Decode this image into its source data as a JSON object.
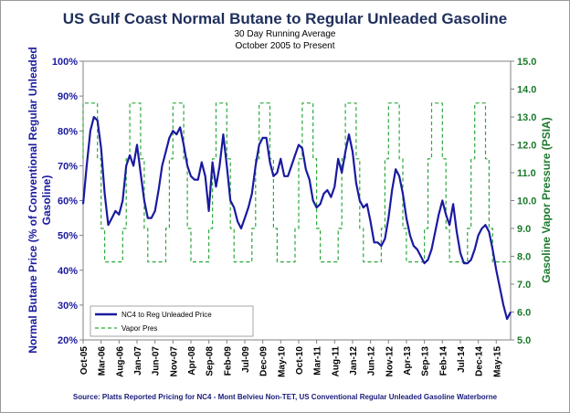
{
  "chart_data": {
    "type": "line",
    "title": "US Gulf Coast Normal Butane to Regular Unleaded Gasoline",
    "subtitle_lines": [
      "30 Day Running Average",
      "October 2005  to Present"
    ],
    "ylabel": "Normal Butane Price (% of Conventional Regular Unleaded Gasoline)",
    "ylabel_lines": [
      "Normal Butane Price (% of Conventional Regular Unleaded",
      "Gasoline)"
    ],
    "y2label": "Gasoline Vapor Pressure (PSIA)",
    "source": "Source: Platts Reported Pricing for NC4 - Mont Belvieu Non-TET, US Conventional Regular Unleaded Gasoline Waterborne",
    "ylim": [
      0.2,
      1.0
    ],
    "y_ticks": [
      "20%",
      "30%",
      "40%",
      "50%",
      "60%",
      "70%",
      "80%",
      "90%",
      "100%"
    ],
    "y2lim": [
      5.0,
      15.0
    ],
    "y2_ticks": [
      "5.0",
      "6.0",
      "7.0",
      "8.0",
      "9.0",
      "10.0",
      "11.0",
      "12.0",
      "13.0",
      "14.0",
      "15.0"
    ],
    "xlim": [
      "2005-10",
      "2015-09"
    ],
    "x_ticks": [
      "Oct-05",
      "Mar-06",
      "Aug-06",
      "Jan-07",
      "Jun-07",
      "Nov-07",
      "Apr-08",
      "Sep-08",
      "Feb-09",
      "Jul-09",
      "Dec-09",
      "May-10",
      "Oct-10",
      "Mar-11",
      "Aug-11",
      "Jan-12",
      "Jun-12",
      "Nov-12",
      "Apr-13",
      "Sep-13",
      "Feb-14",
      "Jul-14",
      "Dec-14",
      "May-15"
    ],
    "grid": false,
    "legend_position": "bottom-left",
    "series": [
      {
        "name": "NC4 to Reg Unleaded Price",
        "axis": "left",
        "color": "#1a1aa0",
        "style": "solid",
        "points": [
          [
            "2005-10",
            0.59
          ],
          [
            "2005-11",
            0.7
          ],
          [
            "2005-12",
            0.8
          ],
          [
            "2006-01",
            0.84
          ],
          [
            "2006-02",
            0.83
          ],
          [
            "2006-03",
            0.75
          ],
          [
            "2006-04",
            0.62
          ],
          [
            "2006-05",
            0.53
          ],
          [
            "2006-06",
            0.55
          ],
          [
            "2006-07",
            0.57
          ],
          [
            "2006-08",
            0.56
          ],
          [
            "2006-09",
            0.6
          ],
          [
            "2006-10",
            0.7
          ],
          [
            "2006-11",
            0.73
          ],
          [
            "2006-12",
            0.7
          ],
          [
            "2007-01",
            0.76
          ],
          [
            "2007-02",
            0.68
          ],
          [
            "2007-03",
            0.6
          ],
          [
            "2007-04",
            0.55
          ],
          [
            "2007-05",
            0.55
          ],
          [
            "2007-06",
            0.57
          ],
          [
            "2007-07",
            0.63
          ],
          [
            "2007-08",
            0.7
          ],
          [
            "2007-09",
            0.74
          ],
          [
            "2007-10",
            0.78
          ],
          [
            "2007-11",
            0.8
          ],
          [
            "2007-12",
            0.79
          ],
          [
            "2008-01",
            0.81
          ],
          [
            "2008-02",
            0.76
          ],
          [
            "2008-03",
            0.7
          ],
          [
            "2008-04",
            0.67
          ],
          [
            "2008-05",
            0.66
          ],
          [
            "2008-06",
            0.66
          ],
          [
            "2008-07",
            0.71
          ],
          [
            "2008-08",
            0.67
          ],
          [
            "2008-09",
            0.57
          ],
          [
            "2008-10",
            0.71
          ],
          [
            "2008-11",
            0.64
          ],
          [
            "2008-12",
            0.7
          ],
          [
            "2009-01",
            0.79
          ],
          [
            "2009-02",
            0.7
          ],
          [
            "2009-03",
            0.6
          ],
          [
            "2009-04",
            0.58
          ],
          [
            "2009-05",
            0.54
          ],
          [
            "2009-06",
            0.52
          ],
          [
            "2009-07",
            0.55
          ],
          [
            "2009-08",
            0.58
          ],
          [
            "2009-09",
            0.62
          ],
          [
            "2009-10",
            0.7
          ],
          [
            "2009-11",
            0.76
          ],
          [
            "2009-12",
            0.78
          ],
          [
            "2010-01",
            0.78
          ],
          [
            "2010-02",
            0.71
          ],
          [
            "2010-03",
            0.67
          ],
          [
            "2010-04",
            0.68
          ],
          [
            "2010-05",
            0.72
          ],
          [
            "2010-06",
            0.67
          ],
          [
            "2010-07",
            0.67
          ],
          [
            "2010-08",
            0.7
          ],
          [
            "2010-09",
            0.73
          ],
          [
            "2010-10",
            0.76
          ],
          [
            "2010-11",
            0.75
          ],
          [
            "2010-12",
            0.69
          ],
          [
            "2011-01",
            0.66
          ],
          [
            "2011-02",
            0.6
          ],
          [
            "2011-03",
            0.58
          ],
          [
            "2011-04",
            0.59
          ],
          [
            "2011-05",
            0.62
          ],
          [
            "2011-06",
            0.63
          ],
          [
            "2011-07",
            0.61
          ],
          [
            "2011-08",
            0.64
          ],
          [
            "2011-09",
            0.72
          ],
          [
            "2011-10",
            0.68
          ],
          [
            "2011-11",
            0.74
          ],
          [
            "2011-12",
            0.79
          ],
          [
            "2012-01",
            0.74
          ],
          [
            "2012-02",
            0.65
          ],
          [
            "2012-03",
            0.6
          ],
          [
            "2012-04",
            0.58
          ],
          [
            "2012-05",
            0.59
          ],
          [
            "2012-06",
            0.54
          ],
          [
            "2012-07",
            0.48
          ],
          [
            "2012-08",
            0.48
          ],
          [
            "2012-09",
            0.47
          ],
          [
            "2012-10",
            0.49
          ],
          [
            "2012-11",
            0.55
          ],
          [
            "2012-12",
            0.63
          ],
          [
            "2013-01",
            0.69
          ],
          [
            "2013-02",
            0.67
          ],
          [
            "2013-03",
            0.62
          ],
          [
            "2013-04",
            0.55
          ],
          [
            "2013-05",
            0.5
          ],
          [
            "2013-06",
            0.47
          ],
          [
            "2013-07",
            0.46
          ],
          [
            "2013-08",
            0.44
          ],
          [
            "2013-09",
            0.42
          ],
          [
            "2013-10",
            0.43
          ],
          [
            "2013-11",
            0.46
          ],
          [
            "2013-12",
            0.51
          ],
          [
            "2014-01",
            0.56
          ],
          [
            "2014-02",
            0.6
          ],
          [
            "2014-03",
            0.56
          ],
          [
            "2014-04",
            0.53
          ],
          [
            "2014-05",
            0.59
          ],
          [
            "2014-06",
            0.51
          ],
          [
            "2014-07",
            0.45
          ],
          [
            "2014-08",
            0.42
          ],
          [
            "2014-09",
            0.42
          ],
          [
            "2014-10",
            0.43
          ],
          [
            "2014-11",
            0.46
          ],
          [
            "2014-12",
            0.5
          ],
          [
            "2015-01",
            0.52
          ],
          [
            "2015-02",
            0.53
          ],
          [
            "2015-03",
            0.51
          ],
          [
            "2015-04",
            0.46
          ],
          [
            "2015-05",
            0.4
          ],
          [
            "2015-06",
            0.35
          ],
          [
            "2015-07",
            0.3
          ],
          [
            "2015-08",
            0.26
          ],
          [
            "2015-09",
            0.28
          ]
        ]
      },
      {
        "name": "Vapor Pres",
        "axis": "right",
        "color": "#2aa83a",
        "style": "dashed",
        "points": [
          [
            "2005-10",
            11.5
          ],
          [
            "2005-10",
            13.5
          ],
          [
            "2006-02",
            13.5
          ],
          [
            "2006-02",
            11.5
          ],
          [
            "2006-03",
            11.5
          ],
          [
            "2006-03",
            9.0
          ],
          [
            "2006-04",
            9.0
          ],
          [
            "2006-04",
            7.8
          ],
          [
            "2006-09",
            7.8
          ],
          [
            "2006-09",
            9.0
          ],
          [
            "2006-10",
            9.0
          ],
          [
            "2006-10",
            11.5
          ],
          [
            "2006-11",
            11.5
          ],
          [
            "2006-11",
            13.5
          ],
          [
            "2007-02",
            13.5
          ],
          [
            "2007-02",
            11.5
          ],
          [
            "2007-03",
            11.5
          ],
          [
            "2007-03",
            9.0
          ],
          [
            "2007-04",
            9.0
          ],
          [
            "2007-04",
            7.8
          ],
          [
            "2007-09",
            7.8
          ],
          [
            "2007-09",
            9.0
          ],
          [
            "2007-10",
            9.0
          ],
          [
            "2007-10",
            11.5
          ],
          [
            "2007-11",
            11.5
          ],
          [
            "2007-11",
            13.5
          ],
          [
            "2008-02",
            13.5
          ],
          [
            "2008-02",
            11.5
          ],
          [
            "2008-03",
            11.5
          ],
          [
            "2008-03",
            9.0
          ],
          [
            "2008-04",
            9.0
          ],
          [
            "2008-04",
            7.8
          ],
          [
            "2008-09",
            7.8
          ],
          [
            "2008-09",
            9.0
          ],
          [
            "2008-10",
            9.0
          ],
          [
            "2008-10",
            11.5
          ],
          [
            "2008-11",
            11.5
          ],
          [
            "2008-11",
            13.5
          ],
          [
            "2009-02",
            13.5
          ],
          [
            "2009-02",
            11.5
          ],
          [
            "2009-03",
            11.5
          ],
          [
            "2009-03",
            9.0
          ],
          [
            "2009-04",
            9.0
          ],
          [
            "2009-04",
            7.8
          ],
          [
            "2009-09",
            7.8
          ],
          [
            "2009-09",
            9.0
          ],
          [
            "2009-10",
            9.0
          ],
          [
            "2009-10",
            11.5
          ],
          [
            "2009-11",
            11.5
          ],
          [
            "2009-11",
            13.5
          ],
          [
            "2010-02",
            13.5
          ],
          [
            "2010-02",
            11.5
          ],
          [
            "2010-03",
            11.5
          ],
          [
            "2010-03",
            9.0
          ],
          [
            "2010-04",
            9.0
          ],
          [
            "2010-04",
            7.8
          ],
          [
            "2010-09",
            7.8
          ],
          [
            "2010-09",
            9.0
          ],
          [
            "2010-10",
            9.0
          ],
          [
            "2010-10",
            11.5
          ],
          [
            "2010-11",
            11.5
          ],
          [
            "2010-11",
            13.5
          ],
          [
            "2011-02",
            13.5
          ],
          [
            "2011-02",
            11.5
          ],
          [
            "2011-03",
            11.5
          ],
          [
            "2011-03",
            9.0
          ],
          [
            "2011-04",
            9.0
          ],
          [
            "2011-04",
            7.8
          ],
          [
            "2011-09",
            7.8
          ],
          [
            "2011-09",
            9.0
          ],
          [
            "2011-10",
            9.0
          ],
          [
            "2011-10",
            11.5
          ],
          [
            "2011-11",
            11.5
          ],
          [
            "2011-11",
            13.5
          ],
          [
            "2012-02",
            13.5
          ],
          [
            "2012-02",
            11.5
          ],
          [
            "2012-03",
            11.5
          ],
          [
            "2012-03",
            9.0
          ],
          [
            "2012-04",
            9.0
          ],
          [
            "2012-04",
            7.8
          ],
          [
            "2012-09",
            7.8
          ],
          [
            "2012-09",
            9.0
          ],
          [
            "2012-10",
            9.0
          ],
          [
            "2012-10",
            11.5
          ],
          [
            "2012-11",
            11.5
          ],
          [
            "2012-11",
            13.5
          ],
          [
            "2013-02",
            13.5
          ],
          [
            "2013-02",
            11.5
          ],
          [
            "2013-03",
            11.5
          ],
          [
            "2013-03",
            9.0
          ],
          [
            "2013-04",
            9.0
          ],
          [
            "2013-04",
            7.8
          ],
          [
            "2013-09",
            7.8
          ],
          [
            "2013-09",
            9.0
          ],
          [
            "2013-10",
            9.0
          ],
          [
            "2013-10",
            11.5
          ],
          [
            "2013-11",
            11.5
          ],
          [
            "2013-11",
            13.5
          ],
          [
            "2014-02",
            13.5
          ],
          [
            "2014-02",
            11.5
          ],
          [
            "2014-03",
            11.5
          ],
          [
            "2014-03",
            9.0
          ],
          [
            "2014-04",
            9.0
          ],
          [
            "2014-04",
            7.8
          ],
          [
            "2014-09",
            7.8
          ],
          [
            "2014-09",
            9.0
          ],
          [
            "2014-10",
            9.0
          ],
          [
            "2014-10",
            11.5
          ],
          [
            "2014-11",
            11.5
          ],
          [
            "2014-11",
            13.5
          ],
          [
            "2015-02",
            13.5
          ],
          [
            "2015-02",
            11.5
          ],
          [
            "2015-03",
            11.5
          ],
          [
            "2015-03",
            9.0
          ],
          [
            "2015-04",
            9.0
          ],
          [
            "2015-04",
            7.8
          ],
          [
            "2015-09",
            7.8
          ]
        ]
      }
    ]
  }
}
